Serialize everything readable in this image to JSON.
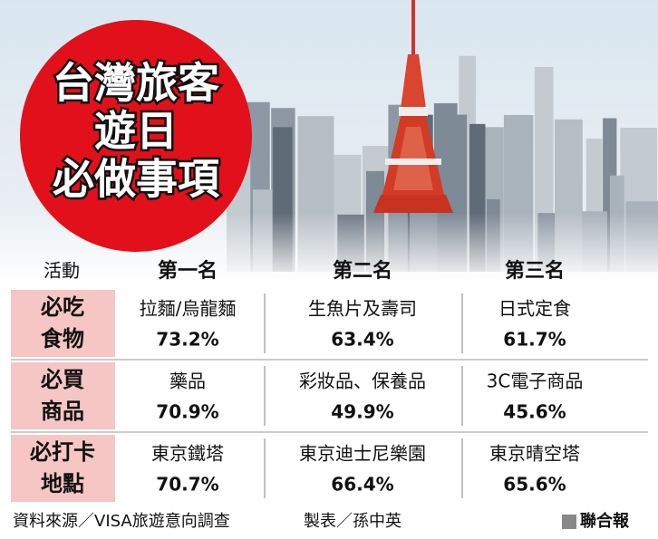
{
  "title": {
    "lines": [
      "台灣旅客",
      "遊日",
      "必做事項"
    ]
  },
  "table": {
    "header": [
      "活動",
      "第一名",
      "第二名",
      "第三名"
    ],
    "rows": [
      {
        "label": [
          "必吃",
          "食物"
        ],
        "cells": [
          {
            "item": "拉麵/烏龍麵",
            "share": "73.2%"
          },
          {
            "item": "生魚片及壽司",
            "share": "63.4%"
          },
          {
            "item": "日式定食",
            "share": "61.7%"
          }
        ]
      },
      {
        "label": [
          "必買",
          "商品"
        ],
        "cells": [
          {
            "item": "藥品",
            "share": "70.9%"
          },
          {
            "item": "彩妝品、保養品",
            "share": "49.9%"
          },
          {
            "item": "3C電子商品",
            "share": "45.6%"
          }
        ]
      },
      {
        "label": [
          "必打卡",
          "地點"
        ],
        "cells": [
          {
            "item": "東京鐵塔",
            "share": "70.7%"
          },
          {
            "item": "東京迪士尼樂園",
            "share": "66.4%"
          },
          {
            "item": "東京晴空塔",
            "share": "65.6%"
          }
        ]
      }
    ]
  },
  "footer": {
    "source": "資料來源／VISA旅遊意向調查",
    "producer": "製表／孫中英",
    "publisher": "聯合報"
  }
}
